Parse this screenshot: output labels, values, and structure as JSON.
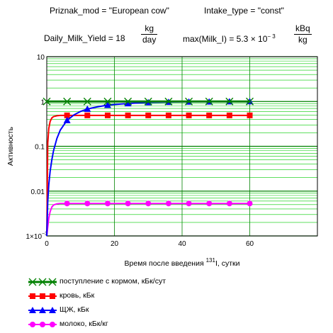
{
  "header": {
    "priznak": "Priznak_mod = \"European cow\"",
    "intake": "Intake_type = \"const\"",
    "yield_label": "Daily_Milk_Yield = 18",
    "yield_num": "kg",
    "yield_den": "day",
    "max_label": "max(Milk_I) = 5.3 × 10",
    "max_exp": "− 3",
    "max_num": "kBq",
    "max_den": "kg"
  },
  "chart_data": {
    "type": "line",
    "ylabel": "Активность",
    "xlabel_prefix": "Время после введения ",
    "xlabel_sup": "131",
    "xlabel_suffix": "I, сутки",
    "xlim": [
      0,
      80
    ],
    "ylim": [
      0.001,
      10
    ],
    "yscale": "log",
    "x_ticks": [
      "0",
      "20",
      "40",
      "60"
    ],
    "x_tick_values": [
      0,
      20,
      40,
      60
    ],
    "y_ticks": [
      "10",
      "1",
      "0.1",
      "0.01",
      "1×10"
    ],
    "y_tick_sup": "−3",
    "y_tick_values": [
      10,
      1,
      0.1,
      0.01,
      0.001
    ],
    "grid": true,
    "legend_position": "bottom",
    "series": [
      {
        "name": "поступление с кормом, кБк/сут",
        "color": "#008000",
        "marker": "x",
        "x": [
          0,
          60
        ],
        "y": [
          1.0,
          1.0
        ],
        "marker_x": [
          0,
          6,
          12,
          18,
          24,
          30,
          36,
          42,
          48,
          54,
          60
        ]
      },
      {
        "name": "кровь, кБк",
        "color": "#ff0000",
        "marker": "square",
        "x": [
          0,
          0.3,
          0.6,
          1,
          1.5,
          2,
          3,
          4,
          5,
          6,
          8,
          12,
          20,
          60
        ],
        "y": [
          0.001,
          0.12,
          0.25,
          0.36,
          0.43,
          0.46,
          0.48,
          0.49,
          0.49,
          0.49,
          0.49,
          0.49,
          0.49,
          0.49
        ],
        "marker_x": [
          6,
          12,
          18,
          24,
          30,
          36,
          42,
          48,
          54,
          60
        ]
      },
      {
        "name": "ЩЖ, кБк",
        "color": "#0000ff",
        "marker": "triangle",
        "x": [
          0,
          0.3,
          0.6,
          1,
          1.5,
          2,
          3,
          4,
          6,
          8,
          10,
          12,
          15,
          18,
          22,
          26,
          30,
          40,
          60
        ],
        "y": [
          0.001,
          0.006,
          0.014,
          0.028,
          0.05,
          0.08,
          0.15,
          0.23,
          0.38,
          0.5,
          0.6,
          0.68,
          0.76,
          0.83,
          0.88,
          0.92,
          0.95,
          0.98,
          1.0
        ],
        "marker_x": [
          6,
          12,
          18,
          24,
          30,
          36,
          42,
          48,
          54,
          60
        ]
      },
      {
        "name": "молоко, кБк/кг",
        "color": "#ff00ff",
        "marker": "circle",
        "x": [
          0,
          0.3,
          0.6,
          1,
          1.5,
          2,
          3,
          4,
          5,
          6,
          8,
          12,
          20,
          60
        ],
        "y": [
          0.001,
          0.0016,
          0.0025,
          0.0035,
          0.0044,
          0.0049,
          0.0052,
          0.0053,
          0.0053,
          0.0053,
          0.0053,
          0.0053,
          0.0053,
          0.0053
        ],
        "marker_x": [
          6,
          12,
          18,
          24,
          30,
          36,
          42,
          48,
          54,
          60
        ]
      }
    ]
  }
}
